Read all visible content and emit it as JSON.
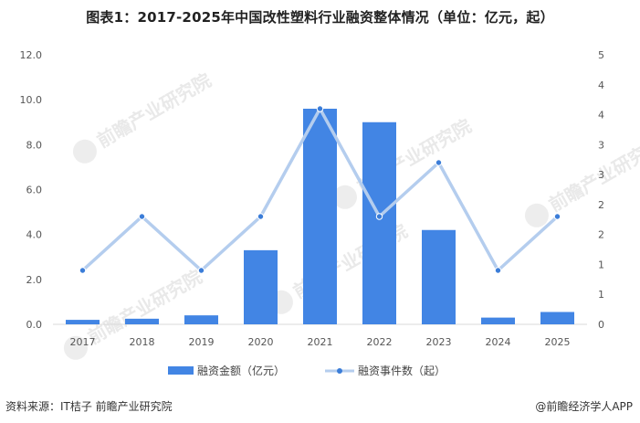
{
  "title": "图表1：2017-2025年中国改性塑料行业融资整体情况（单位：亿元，起）",
  "source": "资料来源：IT桔子 前瞻产业研究院",
  "brand": "@前瞻经济学人APP",
  "watermark": "前瞻产业研究院",
  "colors": {
    "bar": "#4285e4",
    "line": "#b4cdee",
    "marker": "#3b7dd8"
  },
  "chart_data": {
    "type": "bar",
    "categories": [
      "2017",
      "2018",
      "2019",
      "2020",
      "2021",
      "2022",
      "2023",
      "2024",
      "2025"
    ],
    "series": [
      {
        "name": "融资金额（亿元）",
        "type": "bar",
        "axis": "left",
        "values": [
          0.2,
          0.25,
          0.4,
          3.3,
          9.6,
          9.0,
          4.2,
          0.3,
          0.55
        ]
      },
      {
        "name": "融资事件数（起）",
        "type": "line",
        "axis": "right",
        "values": [
          1,
          2,
          1,
          2,
          4,
          2,
          3,
          1,
          2
        ]
      }
    ],
    "left_axis": {
      "ylim": [
        0,
        12
      ],
      "ticks": [
        "0.0",
        "2.0",
        "4.0",
        "6.0",
        "8.0",
        "10.0",
        "12.0"
      ]
    },
    "right_axis": {
      "ylim": [
        0,
        5
      ],
      "ticks": [
        "0",
        "1",
        "1",
        "2",
        "2",
        "3",
        "3",
        "4",
        "4",
        "5"
      ]
    },
    "legend": "bottom",
    "grid": false
  }
}
